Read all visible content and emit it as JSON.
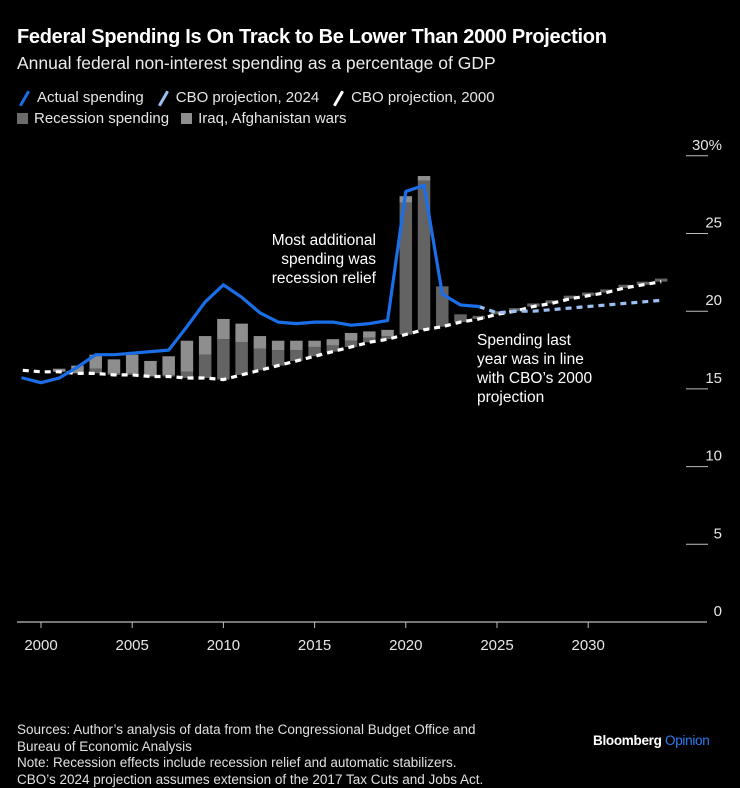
{
  "header": {
    "title": "Federal Spending Is On Track to Be Lower Than 2000 Projection",
    "subtitle": "Annual federal non-interest spending as a percentage of GDP"
  },
  "legend": {
    "line_items": [
      {
        "label": "Actual spending",
        "color": "#1a6fe8"
      },
      {
        "label": "CBO projection, 2024",
        "color": "#9cc0f2"
      },
      {
        "label": "CBO projection, 2000",
        "color": "#ffffff"
      }
    ],
    "bar_items": [
      {
        "label": "Recession spending",
        "color": "#636363"
      },
      {
        "label": "Iraq, Afghanistan wars",
        "color": "#8e8e8e"
      }
    ]
  },
  "chart_data": {
    "type": "bar",
    "title": "Federal Spending Is On Track to Be Lower Than 2000 Projection",
    "subtitle": "Annual federal non-interest spending as a percentage of GDP",
    "xlabel": "",
    "ylabel": "% of GDP",
    "ylim": [
      0,
      30
    ],
    "xlim": [
      1999,
      2034
    ],
    "y_ticks": [
      "0",
      "5",
      "10",
      "15",
      "20",
      "25",
      "30%"
    ],
    "y_tick_values": [
      0,
      5,
      10,
      15,
      20,
      25,
      30
    ],
    "x_ticks": [
      "2000",
      "2005",
      "2010",
      "2015",
      "2020",
      "2025",
      "2030"
    ],
    "x_tick_values": [
      2000,
      2005,
      2010,
      2015,
      2020,
      2025,
      2030
    ],
    "y_axis_position": "right",
    "grid": false,
    "legend_position": "top-left",
    "lines": [
      {
        "name": "Actual spending",
        "color": "#1a6fe8",
        "style": "solid",
        "x": [
          1999,
          2000,
          2001,
          2002,
          2003,
          2004,
          2005,
          2006,
          2007,
          2008,
          2009,
          2010,
          2011,
          2012,
          2013,
          2014,
          2015,
          2016,
          2017,
          2018,
          2019,
          2020,
          2021,
          2022,
          2023,
          2024
        ],
        "y": [
          15.7,
          15.4,
          15.7,
          16.4,
          17.2,
          17.2,
          17.3,
          17.4,
          17.5,
          19.0,
          20.6,
          21.7,
          20.9,
          19.9,
          19.3,
          19.2,
          19.3,
          19.3,
          19.1,
          19.2,
          19.4,
          27.7,
          28.1,
          21.1,
          20.4,
          20.3
        ]
      },
      {
        "name": "CBO projection, 2024",
        "color": "#9cc0f2",
        "style": "dashed",
        "x": [
          2024,
          2025,
          2026,
          2027,
          2028,
          2029,
          2030,
          2031,
          2032,
          2033,
          2034
        ],
        "y": [
          20.3,
          19.9,
          20.0,
          20.0,
          20.1,
          20.2,
          20.3,
          20.4,
          20.5,
          20.6,
          20.7
        ]
      },
      {
        "name": "CBO projection, 2000",
        "color": "#ffffff",
        "style": "dashed",
        "x": [
          1999,
          2000,
          2001,
          2002,
          2003,
          2004,
          2005,
          2006,
          2007,
          2008,
          2009,
          2010,
          2011,
          2012,
          2013,
          2014,
          2015,
          2016,
          2017,
          2018,
          2019,
          2020,
          2021,
          2022,
          2023,
          2024,
          2025,
          2026,
          2027,
          2028,
          2029,
          2030,
          2031,
          2032,
          2033,
          2034
        ],
        "y": [
          16.2,
          16.1,
          16.1,
          16.0,
          16.0,
          15.9,
          15.9,
          15.8,
          15.8,
          15.7,
          15.7,
          15.6,
          15.9,
          16.2,
          16.5,
          16.8,
          17.1,
          17.4,
          17.7,
          18.0,
          18.2,
          18.5,
          18.8,
          19.0,
          19.3,
          19.5,
          19.8,
          20.0,
          20.3,
          20.5,
          20.8,
          21.0,
          21.2,
          21.5,
          21.7,
          21.9
        ]
      }
    ],
    "bars": {
      "stacked_on": "CBO projection, 2000",
      "categories": [
        2001,
        2002,
        2003,
        2004,
        2005,
        2006,
        2007,
        2008,
        2009,
        2010,
        2011,
        2012,
        2013,
        2014,
        2015,
        2016,
        2017,
        2018,
        2019,
        2020,
        2021,
        2022,
        2023,
        2024,
        2025,
        2026,
        2027,
        2028,
        2029,
        2030,
        2031,
        2032,
        2033,
        2034
      ],
      "series": [
        {
          "name": "Recession spending",
          "color": "#636363",
          "values": [
            0,
            0,
            0.3,
            0.1,
            0.1,
            0,
            0.1,
            0.4,
            1.5,
            2.6,
            2.1,
            1.4,
            1.0,
            0.7,
            0.6,
            0.4,
            0.4,
            0.3,
            0.2,
            8.5,
            9.6,
            2.6,
            0.5,
            0.2,
            0.2,
            0.2,
            0.2,
            0.2,
            0.2,
            0.2,
            0.2,
            0.2,
            0.2,
            0.2
          ]
        },
        {
          "name": "Iraq, Afghanistan wars",
          "color": "#8e8e8e",
          "values": [
            0.2,
            0.5,
            0.9,
            0.9,
            1.2,
            1.0,
            1.2,
            2.0,
            1.2,
            1.3,
            1.2,
            0.8,
            0.6,
            0.6,
            0.4,
            0.4,
            0.5,
            0.4,
            0.4,
            0.4,
            0.3,
            0,
            0,
            0,
            0,
            0,
            0,
            0,
            0,
            0,
            0,
            0,
            0,
            0
          ]
        }
      ]
    },
    "annotations": [
      {
        "text_lines": [
          "Most additional",
          "spending was",
          "recession relief"
        ],
        "near_year": 2013
      },
      {
        "text_lines": [
          "Spending last",
          "year was in line",
          "with CBO’s 2000",
          "projection"
        ],
        "near_year": 2027
      }
    ]
  },
  "footer": {
    "lines": [
      "Sources: Author’s analysis of data from the Congressional Budget Office and",
      "Bureau of Economic Analysis",
      "Note: Recession effects include recession relief and automatic stabilizers.",
      "CBO’s 2024 projection assumes extension of the 2017 Tax Cuts and Jobs Act."
    ],
    "brand_main": "Bloomberg",
    "brand_accent": "Opinion"
  }
}
